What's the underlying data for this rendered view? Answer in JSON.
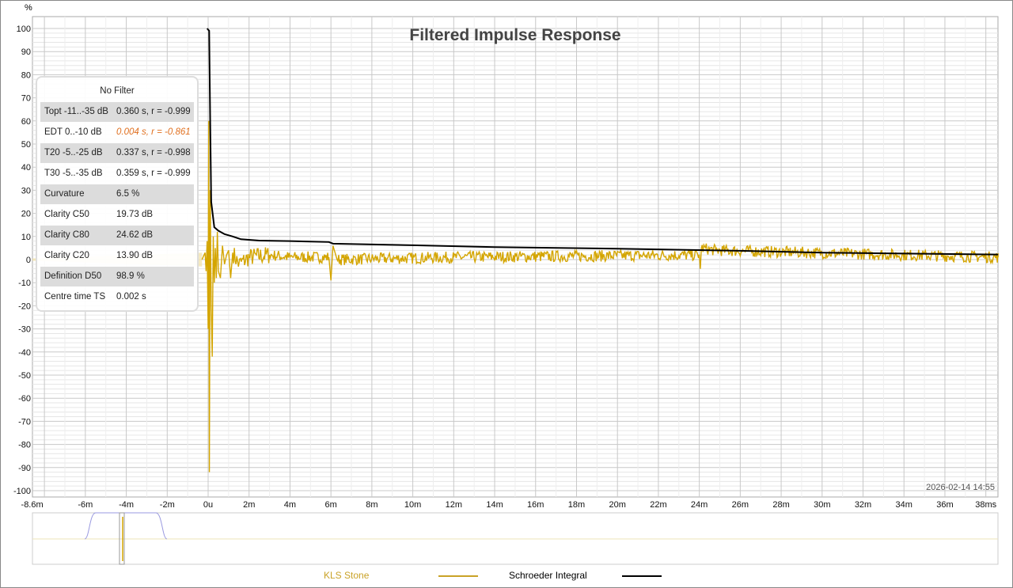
{
  "chart_data": {
    "type": "line",
    "title": "Filtered Impulse Response",
    "ylabel": "%",
    "xunit": "s",
    "ylim": [
      -100,
      100
    ],
    "xlim_ms": [
      -8.6,
      38.6
    ],
    "yticks": [
      "100",
      "90",
      "80",
      "70",
      "60",
      "50",
      "40",
      "30",
      "20",
      "10",
      "0",
      "-10",
      "-20",
      "-30",
      "-40",
      "-50",
      "-60",
      "-70",
      "-80",
      "-90",
      "-100"
    ],
    "xticks": [
      {
        "v": -8.6,
        "l": "-8.6m"
      },
      {
        "v": -6,
        "l": "-6m"
      },
      {
        "v": -4,
        "l": "-4m"
      },
      {
        "v": -2,
        "l": "-2m"
      },
      {
        "v": 0,
        "l": "0u"
      },
      {
        "v": 2,
        "l": "2m"
      },
      {
        "v": 4,
        "l": "4m"
      },
      {
        "v": 6,
        "l": "6m"
      },
      {
        "v": 8,
        "l": "8m"
      },
      {
        "v": 10,
        "l": "10m"
      },
      {
        "v": 12,
        "l": "12m"
      },
      {
        "v": 14,
        "l": "14m"
      },
      {
        "v": 16,
        "l": "16m"
      },
      {
        "v": 18,
        "l": "18m"
      },
      {
        "v": 20,
        "l": "20m"
      },
      {
        "v": 22,
        "l": "22m"
      },
      {
        "v": 24,
        "l": "24m"
      },
      {
        "v": 26,
        "l": "26m"
      },
      {
        "v": 28,
        "l": "28m"
      },
      {
        "v": 30,
        "l": "30m"
      },
      {
        "v": 32,
        "l": "32m"
      },
      {
        "v": 34,
        "l": "34m"
      },
      {
        "v": 36,
        "l": "36m"
      },
      {
        "v": 38,
        "l": "38ms"
      }
    ],
    "grid": true,
    "timestamp": "2026-02-14 14:55",
    "series": [
      {
        "name": "KLS Stone",
        "color": "#d4a500",
        "points": [
          [
            -0.3,
            0
          ],
          [
            -0.15,
            3
          ],
          [
            -0.1,
            -5
          ],
          [
            -0.05,
            8
          ],
          [
            0,
            -30
          ],
          [
            0.03,
            60
          ],
          [
            0.06,
            -92
          ],
          [
            0.1,
            30
          ],
          [
            0.15,
            -20
          ],
          [
            0.2,
            -42
          ],
          [
            0.25,
            10
          ],
          [
            0.3,
            -10
          ],
          [
            0.35,
            5
          ],
          [
            0.4,
            -8
          ],
          [
            0.45,
            12
          ],
          [
            0.5,
            -5
          ],
          [
            0.6,
            -8
          ],
          [
            0.7,
            6
          ],
          [
            0.8,
            -2
          ],
          [
            0.9,
            2
          ],
          [
            1.0,
            4
          ],
          [
            1.1,
            -8
          ],
          [
            1.2,
            3
          ],
          [
            1.5,
            -2
          ],
          [
            2,
            1
          ],
          [
            3,
            2
          ],
          [
            4,
            1
          ],
          [
            5.9,
            1
          ],
          [
            6.0,
            -9
          ],
          [
            6.1,
            6
          ],
          [
            6.3,
            0
          ],
          [
            12,
            1
          ],
          [
            24,
            2
          ],
          [
            24.05,
            -4
          ],
          [
            24.1,
            5
          ],
          [
            24.8,
            4
          ],
          [
            38.6,
            1
          ]
        ],
        "noise": 2.5
      },
      {
        "name": "Schroeder Integral",
        "color": "#000000",
        "points": [
          [
            -0.05,
            100
          ],
          [
            0.05,
            99
          ],
          [
            0.1,
            60
          ],
          [
            0.15,
            25
          ],
          [
            0.3,
            14
          ],
          [
            0.5,
            12.5
          ],
          [
            0.8,
            11
          ],
          [
            1.2,
            10
          ],
          [
            1.6,
            8.8
          ],
          [
            2.5,
            8.2
          ],
          [
            4,
            8
          ],
          [
            5.9,
            7.6
          ],
          [
            6.1,
            6.9
          ],
          [
            10,
            6.2
          ],
          [
            14,
            5.4
          ],
          [
            20,
            4.7
          ],
          [
            26,
            3.8
          ],
          [
            30,
            3
          ],
          [
            38.6,
            2.2
          ]
        ]
      }
    ],
    "legend": "bottom"
  },
  "info": {
    "title": "No Filter",
    "rows": [
      {
        "k": "Topt -11..-35 dB",
        "v": "0.360 s,  r = -0.999"
      },
      {
        "k": "EDT  0..-10 dB",
        "v": "0.004 s, r = -0.861"
      },
      {
        "k": "T20 -5..-25 dB",
        "v": "0.337 s,  r = -0.998"
      },
      {
        "k": "T30 -5..-35 dB",
        "v": "0.359 s,  r = -0.999"
      },
      {
        "k": "Curvature",
        "v": "6.5 %"
      },
      {
        "k": "Clarity C50",
        "v": "19.73 dB"
      },
      {
        "k": "Clarity C80",
        "v": "24.62 dB"
      },
      {
        "k": "Clarity C20",
        "v": "13.90 dB"
      },
      {
        "k": "Definition D50",
        "v": "98.9 %"
      },
      {
        "k": "Centre time TS",
        "v": "0.002 s"
      }
    ]
  },
  "legend": {
    "s1": "KLS Stone",
    "s2": "Schroeder Integral"
  }
}
